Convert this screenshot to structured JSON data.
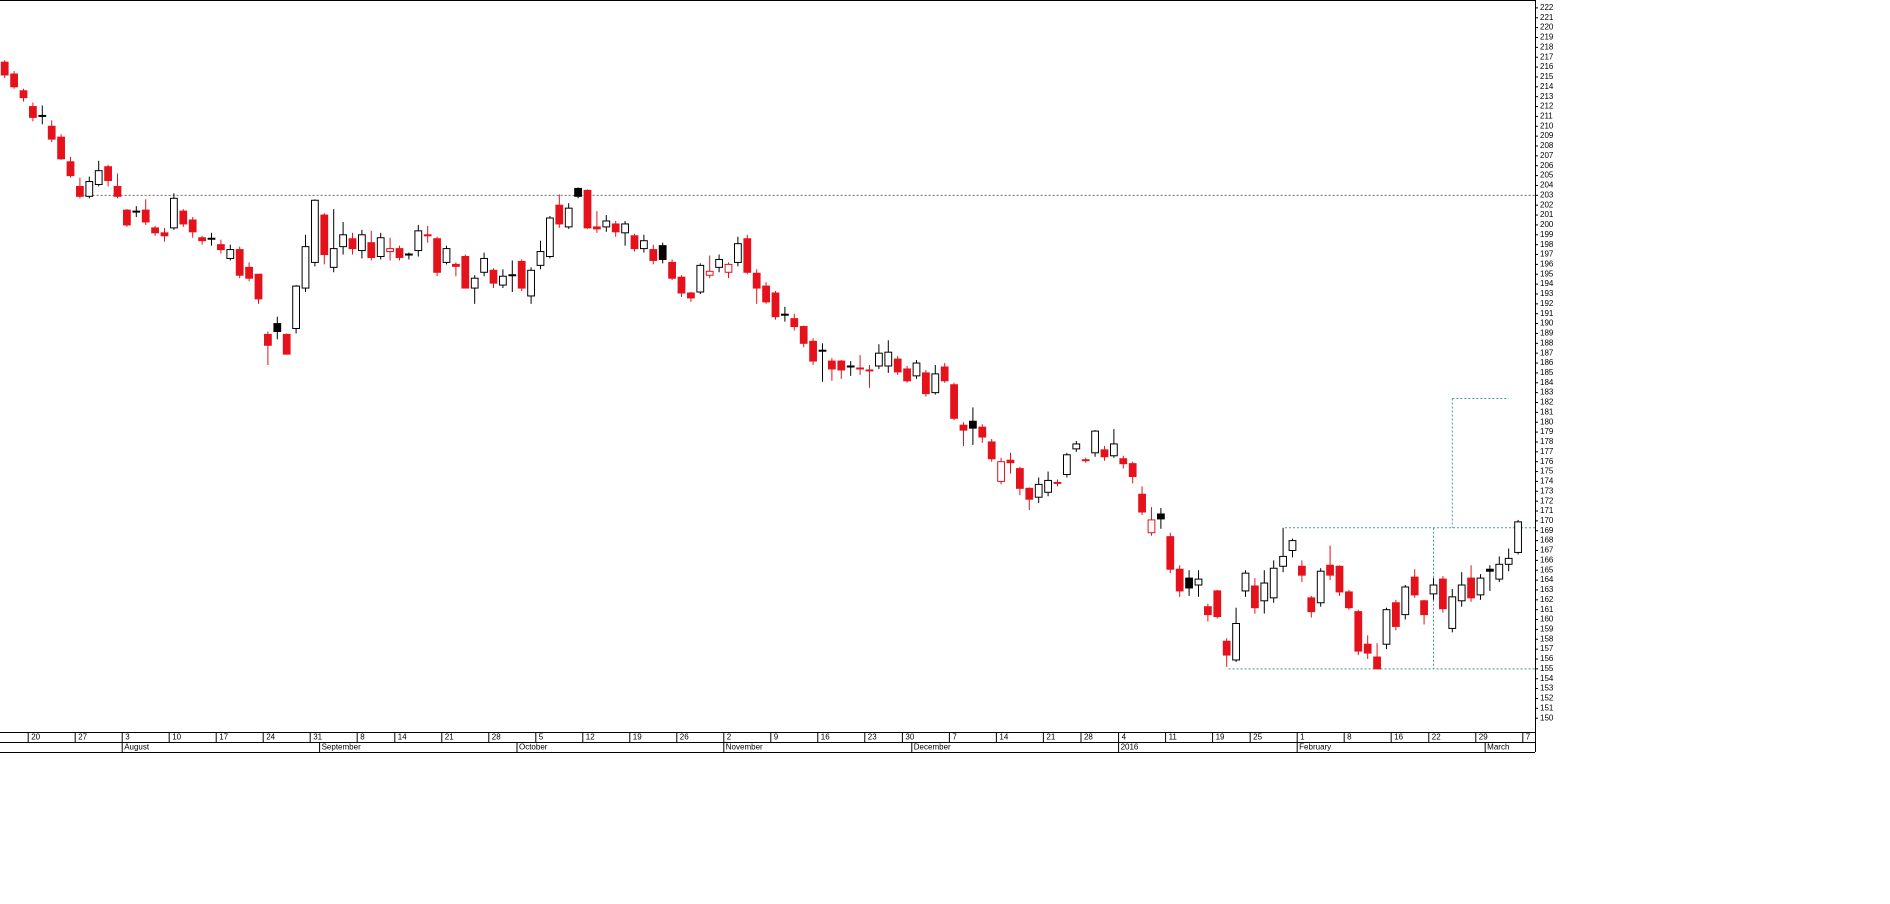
{
  "chart_data": {
    "type": "candlestick",
    "xlim": [
      -0.5,
      162.8
    ],
    "ylim": [
      148.6,
      222.8
    ],
    "yticks": [
      150,
      151,
      152,
      153,
      154,
      155,
      156,
      157,
      158,
      159,
      160,
      161,
      162,
      163,
      164,
      165,
      166,
      167,
      168,
      169,
      170,
      171,
      172,
      173,
      174,
      175,
      176,
      177,
      178,
      179,
      180,
      181,
      182,
      183,
      184,
      185,
      186,
      187,
      188,
      189,
      190,
      191,
      192,
      193,
      194,
      195,
      196,
      197,
      198,
      199,
      200,
      201,
      202,
      203,
      204,
      205,
      206,
      207,
      208,
      209,
      210,
      211,
      212,
      213,
      214,
      215,
      216,
      217,
      218,
      219,
      220,
      221,
      222
    ],
    "xticks": [
      {
        "value": 3,
        "label": "20"
      },
      {
        "value": 8,
        "label": "27"
      },
      {
        "value": 13,
        "label": "3"
      },
      {
        "value": 18,
        "label": "10"
      },
      {
        "value": 23,
        "label": "17"
      },
      {
        "value": 28,
        "label": "24"
      },
      {
        "value": 33,
        "label": "31"
      },
      {
        "value": 38,
        "label": "8"
      },
      {
        "value": 42,
        "label": "14"
      },
      {
        "value": 47,
        "label": "21"
      },
      {
        "value": 52,
        "label": "28"
      },
      {
        "value": 57,
        "label": "5"
      },
      {
        "value": 62,
        "label": "12"
      },
      {
        "value": 67,
        "label": "19"
      },
      {
        "value": 72,
        "label": "26"
      },
      {
        "value": 77,
        "label": "2"
      },
      {
        "value": 82,
        "label": "9"
      },
      {
        "value": 87,
        "label": "16"
      },
      {
        "value": 92,
        "label": "23"
      },
      {
        "value": 96,
        "label": "30"
      },
      {
        "value": 101,
        "label": "7"
      },
      {
        "value": 106,
        "label": "14"
      },
      {
        "value": 111,
        "label": "21"
      },
      {
        "value": 115,
        "label": "28"
      },
      {
        "value": 119,
        "label": "4"
      },
      {
        "value": 124,
        "label": "11"
      },
      {
        "value": 129,
        "label": "19"
      },
      {
        "value": 133,
        "label": "25"
      },
      {
        "value": 138,
        "label": "1"
      },
      {
        "value": 143,
        "label": "8"
      },
      {
        "value": 148,
        "label": "16"
      },
      {
        "value": 152,
        "label": "22"
      },
      {
        "value": 157,
        "label": "29"
      },
      {
        "value": 162,
        "label": "7"
      }
    ],
    "month_ticks": [
      {
        "value": 13,
        "label": "August"
      },
      {
        "value": 34,
        "label": "September"
      },
      {
        "value": 55,
        "label": "October"
      },
      {
        "value": 77,
        "label": "November"
      },
      {
        "value": 97,
        "label": "December"
      },
      {
        "value": 119,
        "label": "2016"
      },
      {
        "value": 138,
        "label": "February"
      },
      {
        "value": 158,
        "label": "March"
      }
    ],
    "colors": {
      "down": "#e5121c",
      "up": "#000000"
    },
    "candles": {
      "open": [
        216.5,
        215.3,
        213.6,
        212.0,
        211.1,
        210.0,
        208.9,
        206.4,
        203.9,
        202.9,
        204.1,
        205.9,
        203.9,
        201.5,
        201.4,
        201.5,
        199.7,
        199.2,
        199.7,
        201.4,
        200.5,
        198.7,
        198.65,
        198.0,
        196.6,
        197.5,
        195.7,
        195.0,
        188.9,
        190.0,
        188.9,
        189.5,
        193.6,
        196.2,
        201.0,
        195.7,
        197.8,
        198.6,
        197.4,
        198.2,
        196.8,
        197.3,
        197.6,
        197.05,
        197.4,
        198.9,
        198.6,
        196.2,
        196.0,
        196.8,
        193.6,
        195.2,
        195.4,
        193.9,
        194.95,
        196.3,
        192.8,
        195.9,
        196.8,
        202.0,
        199.8,
        203.7,
        203.5,
        199.8,
        199.8,
        200.1,
        199.2,
        198.9,
        197.6,
        197.5,
        197.9,
        196.2,
        194.7,
        193.1,
        193.2,
        194.9,
        195.7,
        195.2,
        196.2,
        198.6,
        195.1,
        193.8,
        193.1,
        190.95,
        190.5,
        189.7,
        188.2,
        187.3,
        186.2,
        186.2,
        185.7,
        185.5,
        185.3,
        185.7,
        185.7,
        186.4,
        185.4,
        184.7,
        185.0,
        183.0,
        185.6,
        183.8,
        179.7,
        180.1,
        179.5,
        178.0,
        174.0,
        176.15,
        175.3,
        173.3,
        172.4,
        172.9,
        173.9,
        174.7,
        177.3,
        176.2,
        176.9,
        177.2,
        176.6,
        176.3,
        175.8,
        172.7,
        168.8,
        170.7,
        168.4,
        165.1,
        164.2,
        163.5,
        161.3,
        162.9,
        157.8,
        155.9,
        162.9,
        163.4,
        161.9,
        162.2,
        165.4,
        167.0,
        165.4,
        162.2,
        161.7,
        165.5,
        165.4,
        162.8,
        160.8,
        157.5,
        156.2,
        157.5,
        161.7,
        160.5,
        164.3,
        161.9,
        162.6,
        164.1,
        159.1,
        161.9,
        164.2,
        162.5,
        165.1,
        164.1,
        165.6,
        166.8
      ],
      "high": [
        216.7,
        215.6,
        213.8,
        212.4,
        212.1,
        210.6,
        209.2,
        206.9,
        204.8,
        204.9,
        206.5,
        206.1,
        205.2,
        201.6,
        201.9,
        202.6,
        199.9,
        199.7,
        203.2,
        201.6,
        200.8,
        198.9,
        199.2,
        198.5,
        198.0,
        197.8,
        196.2,
        195.0,
        189.2,
        190.7,
        189.0,
        193.9,
        199.0,
        202.6,
        201.2,
        201.6,
        200.3,
        199.2,
        199.5,
        199.4,
        199.2,
        198.7,
        197.9,
        197.2,
        200.0,
        199.9,
        198.8,
        197.9,
        196.2,
        197.0,
        194.9,
        197.2,
        195.6,
        195.5,
        196.4,
        196.5,
        195.7,
        198.4,
        200.9,
        203.1,
        202.2,
        203.8,
        203.6,
        201.4,
        201.0,
        200.4,
        200.4,
        199.1,
        199.0,
        198.0,
        198.2,
        196.5,
        194.9,
        193.2,
        196.1,
        196.9,
        197.0,
        196.2,
        198.8,
        199.0,
        195.5,
        194.2,
        193.3,
        191.7,
        191.0,
        189.8,
        188.5,
        188.0,
        186.5,
        186.3,
        186.2,
        186.8,
        185.8,
        187.9,
        188.3,
        186.7,
        185.7,
        186.3,
        185.3,
        185.8,
        186.0,
        184.0,
        180.0,
        181.5,
        179.8,
        178.3,
        176.4,
        176.9,
        175.5,
        173.4,
        174.4,
        175.0,
        174.2,
        176.9,
        178.1,
        176.4,
        179.2,
        177.6,
        179.3,
        176.6,
        176.0,
        173.5,
        171.4,
        171.3,
        168.8,
        165.5,
        165.0,
        165.0,
        161.6,
        163.0,
        158.1,
        161.2,
        165.0,
        164.2,
        165.0,
        166.0,
        169.3,
        168.2,
        166.0,
        162.4,
        165.2,
        167.5,
        165.5,
        163.0,
        161.0,
        158.4,
        157.6,
        161.2,
        162.0,
        163.5,
        165.1,
        162.0,
        164.2,
        164.4,
        163.1,
        164.8,
        165.5,
        164.6,
        165.5,
        166.4,
        167.2,
        170.1
      ],
      "low": [
        214.9,
        213.8,
        212.5,
        210.5,
        210.2,
        208.4,
        206.6,
        204.8,
        202.7,
        202.7,
        203.9,
        203.9,
        202.7,
        199.8,
        200.8,
        200.0,
        198.9,
        198.3,
        199.5,
        199.8,
        198.7,
        198.0,
        197.9,
        197.1,
        196.4,
        194.6,
        194.3,
        192.0,
        185.8,
        188.4,
        186.9,
        189.0,
        193.2,
        195.8,
        196.0,
        195.2,
        197.0,
        197.0,
        196.6,
        196.4,
        196.5,
        196.4,
        196.4,
        196.5,
        196.8,
        198.2,
        194.8,
        196.0,
        194.8,
        193.6,
        192.0,
        194.8,
        193.6,
        193.6,
        193.2,
        193.3,
        192.0,
        195.5,
        196.6,
        199.7,
        199.6,
        202.7,
        199.6,
        199.2,
        199.3,
        198.8,
        197.9,
        197.3,
        197.2,
        196.0,
        196.1,
        194.4,
        192.7,
        192.2,
        193.0,
        194.6,
        195.2,
        194.6,
        195.8,
        195.0,
        192.0,
        192.0,
        190.4,
        190.2,
        189.3,
        187.6,
        185.8,
        184.1,
        184.2,
        184.4,
        184.7,
        184.8,
        183.5,
        185.4,
        185.0,
        184.8,
        184.0,
        184.4,
        182.6,
        182.8,
        184.0,
        180.2,
        177.6,
        177.7,
        177.9,
        176.0,
        173.7,
        174.8,
        172.6,
        171.1,
        171.8,
        172.5,
        173.5,
        174.4,
        177.0,
        175.9,
        176.5,
        176.1,
        176.4,
        175.3,
        173.8,
        170.6,
        168.5,
        169.2,
        164.7,
        162.3,
        162.4,
        162.3,
        159.8,
        160.1,
        155.2,
        155.7,
        162.3,
        160.6,
        160.6,
        161.7,
        164.8,
        166.3,
        163.8,
        160.2,
        161.3,
        164.0,
        162.4,
        161.0,
        156.4,
        156.0,
        155.0,
        157.0,
        158.9,
        160.0,
        162.2,
        159.5,
        162.0,
        160.7,
        158.7,
        161.3,
        161.8,
        162.0,
        162.9,
        163.8,
        164.9,
        166.6
      ],
      "close": [
        215.2,
        214.0,
        212.9,
        210.9,
        211.0,
        208.7,
        206.7,
        205.0,
        202.9,
        204.4,
        205.5,
        204.5,
        202.9,
        200.0,
        201.3,
        200.3,
        199.2,
        198.9,
        202.7,
        200.1,
        199.3,
        198.4,
        198.6,
        197.5,
        197.5,
        194.9,
        194.6,
        192.5,
        187.8,
        189.2,
        186.9,
        193.8,
        197.8,
        202.5,
        197.0,
        197.6,
        199.0,
        197.6,
        199.0,
        196.7,
        198.7,
        197.6,
        196.7,
        197.0,
        199.4,
        199.0,
        195.2,
        197.6,
        195.8,
        193.6,
        194.6,
        196.6,
        194.1,
        194.8,
        194.9,
        193.6,
        195.4,
        197.3,
        200.7,
        200.1,
        201.7,
        202.9,
        199.7,
        199.6,
        200.4,
        199.3,
        200.1,
        197.6,
        198.4,
        196.4,
        196.5,
        194.6,
        193.1,
        192.6,
        195.9,
        195.3,
        196.5,
        196.0,
        198.1,
        195.2,
        193.6,
        192.2,
        190.7,
        190.9,
        189.7,
        188.0,
        186.2,
        187.2,
        185.4,
        185.3,
        185.6,
        185.4,
        185.2,
        187.0,
        187.1,
        185.1,
        184.2,
        186.0,
        182.9,
        184.9,
        184.2,
        180.4,
        179.2,
        179.4,
        178.5,
        176.3,
        176.0,
        175.9,
        173.3,
        172.2,
        173.7,
        174.1,
        173.8,
        176.7,
        177.8,
        176.1,
        179.1,
        176.5,
        177.8,
        175.8,
        174.5,
        170.9,
        170.1,
        170.2,
        165.1,
        162.9,
        163.2,
        164.1,
        160.5,
        160.3,
        156.4,
        159.6,
        164.7,
        161.2,
        163.7,
        165.2,
        166.4,
        168.0,
        164.5,
        160.8,
        164.9,
        164.5,
        162.8,
        161.2,
        156.8,
        156.6,
        155.0,
        161.0,
        159.3,
        163.3,
        162.5,
        160.5,
        163.5,
        161.1,
        162.3,
        163.5,
        162.2,
        164.2,
        164.9,
        165.6,
        166.2,
        169.9
      ]
    },
    "reference_lines": [
      {
        "x": [
          8.5,
          162.8
        ],
        "y": [
          203,
          203
        ],
        "color": "#6b6b6b"
      },
      {
        "x": [
          136.2,
          162.8
        ],
        "y": [
          169.3,
          169.3
        ],
        "color": "#3c9c96"
      },
      {
        "x": [
          130.2,
          162.8
        ],
        "y": [
          155,
          155
        ],
        "color": "#3c9c96"
      },
      {
        "x": [
          152,
          152
        ],
        "y": [
          169.3,
          155
        ],
        "color": "#3c9c96"
      },
      {
        "x": [
          154,
          154
        ],
        "y": [
          182.4,
          169.3
        ],
        "color": "#3c9c96"
      },
      {
        "x": [
          154,
          160
        ],
        "y": [
          182.4,
          182.4
        ],
        "color": "#3c9c96"
      }
    ]
  }
}
